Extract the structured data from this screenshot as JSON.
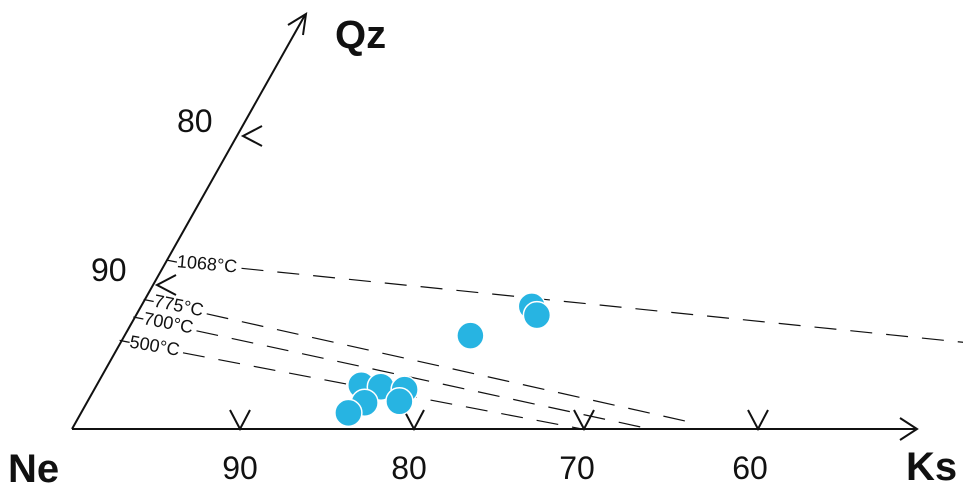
{
  "chart_data": {
    "type": "scatter",
    "title": "",
    "apices": {
      "origin": "Ne",
      "x_axis": "Ks",
      "y_axis": "Qz"
    },
    "x_ticks": [
      "90",
      "80",
      "70",
      "60"
    ],
    "y_ticks": [
      "80",
      "90"
    ],
    "isotherms": [
      {
        "label": "1068°C",
        "start": [
          100,
          11.5
        ],
        "end": [
          44,
          5.2
        ]
      },
      {
        "label": "775°C",
        "start": [
          100,
          8.8
        ],
        "end": [
          64,
          0.5
        ]
      },
      {
        "label": "700°C",
        "start": [
          100,
          7.6
        ],
        "end": [
          66,
          0.0
        ]
      },
      {
        "label": "500°C",
        "start": [
          100,
          6.0
        ],
        "end": [
          70,
          0.0
        ]
      }
    ],
    "points": [
      {
        "ks": 77.2,
        "qz": 8.4
      },
      {
        "ks": 76.6,
        "qz": 7.8
      },
      {
        "ks": 79.8,
        "qz": 6.4
      },
      {
        "ks": 84.5,
        "qz": 3.0
      },
      {
        "ks": 83.3,
        "qz": 2.9
      },
      {
        "ks": 81.8,
        "qz": 2.7
      },
      {
        "ks": 81.7,
        "qz": 1.9
      },
      {
        "ks": 83.7,
        "qz": 1.8
      },
      {
        "ks": 84.3,
        "qz": 1.1
      }
    ],
    "point_color": "#27b4e2"
  }
}
